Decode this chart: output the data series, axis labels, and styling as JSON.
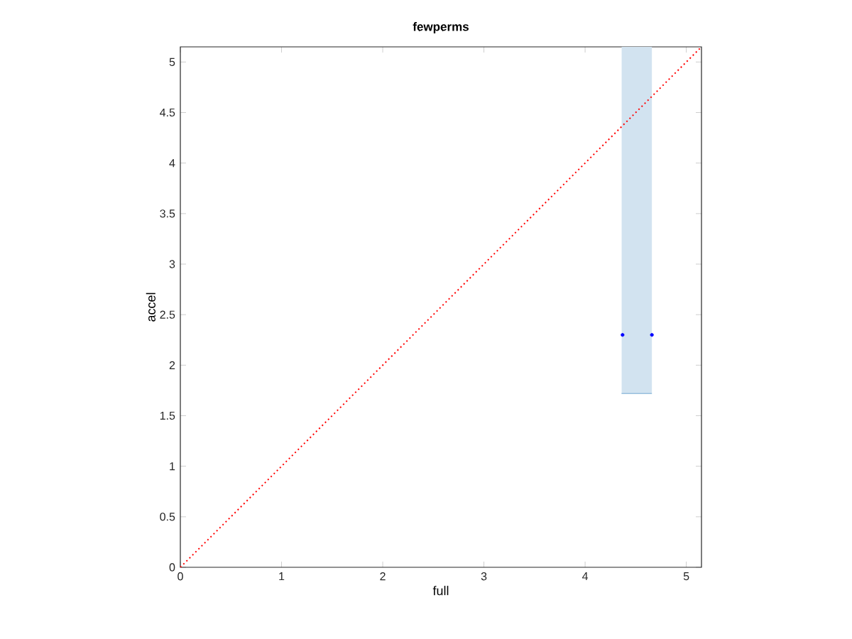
{
  "chart_data": {
    "type": "scatter",
    "title": "fewperms",
    "xlabel": "full",
    "ylabel": "accel",
    "xlim": [
      0,
      5.15
    ],
    "ylim": [
      0,
      5.15
    ],
    "xticks": [
      0,
      1,
      2,
      3,
      4,
      5
    ],
    "yticks": [
      0,
      0.5,
      1,
      1.5,
      2,
      2.5,
      3,
      3.5,
      4,
      4.5,
      5
    ],
    "grid": false,
    "series": [
      {
        "type": "line",
        "x": [
          4.36,
          4.66
        ],
        "values": [
          1.72,
          1.72
        ],
        "lower": [
          1.72,
          1.72
        ],
        "upper": [
          5.15,
          5.15
        ],
        "color": "#9ac0de",
        "marker": "none"
      },
      {
        "type": "line",
        "x": [
          0,
          5.15
        ],
        "values": [
          0,
          5.15
        ],
        "color": "#ff0000",
        "line_style": "dotted",
        "marker": "none"
      },
      {
        "x": [
          4.37,
          4.66
        ],
        "values": [
          2.3,
          2.3
        ],
        "color": "#0000ff",
        "marker": "circle"
      }
    ]
  }
}
